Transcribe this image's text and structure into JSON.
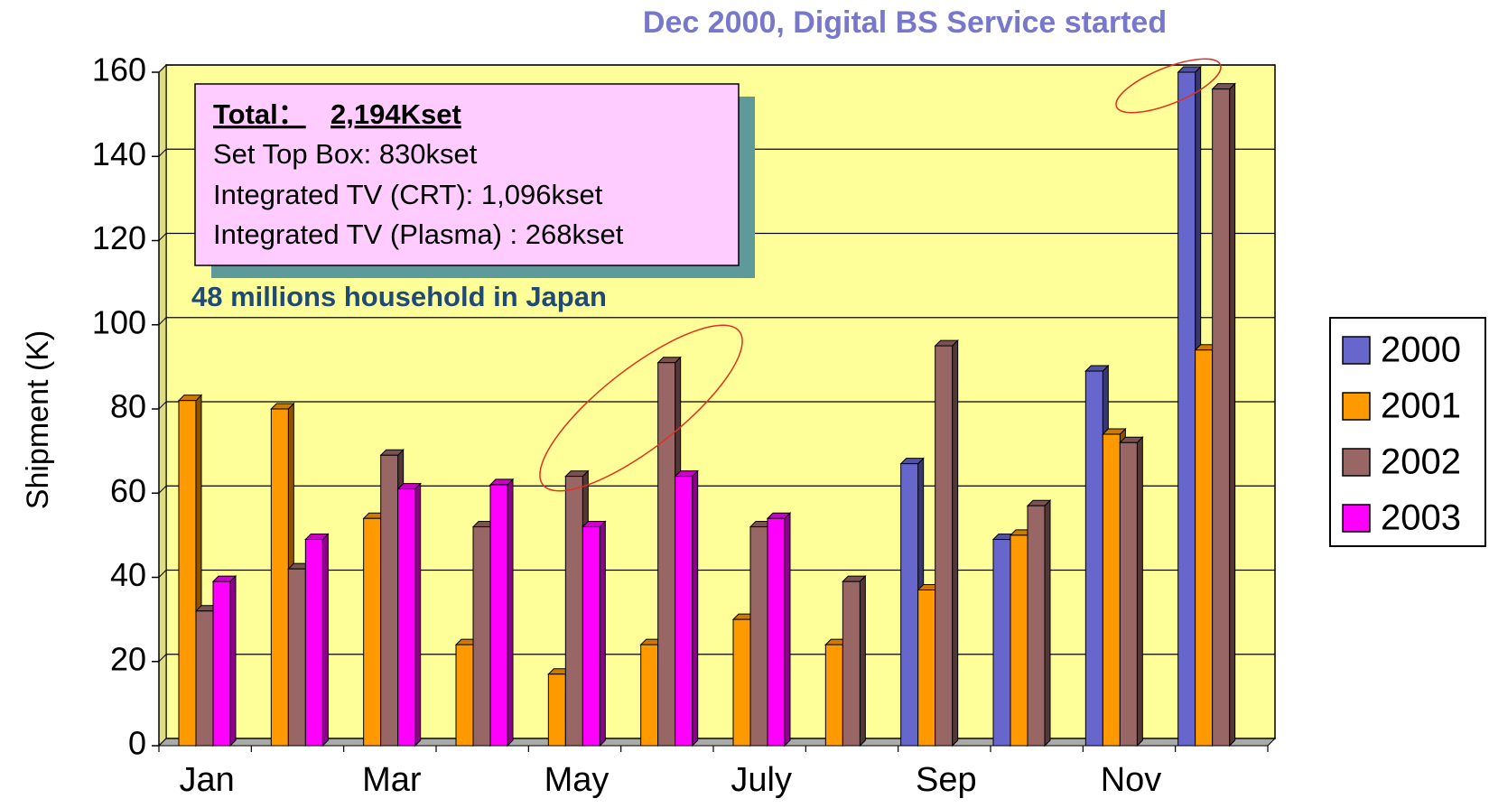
{
  "chart_data": {
    "type": "bar",
    "title": "Dec 2000, Digital BS Service started",
    "annotation": "48 millions household in Japan",
    "info_box": {
      "total_label": "Total：",
      "total_value": "2,194Kset",
      "lines": [
        "Set Top Box:  830kset",
        "Integrated TV (CRT): 1,096kset",
        "Integrated TV (Plasma) : 268kset"
      ]
    },
    "y_label": "Shipment (K)",
    "categories": [
      "Jan",
      null,
      "Mar",
      null,
      "May",
      null,
      "July",
      null,
      "Sep",
      null,
      "Nov",
      null
    ],
    "series": [
      {
        "name": "2000",
        "color": "#6666cc",
        "values": [
          null,
          null,
          null,
          null,
          null,
          null,
          null,
          null,
          67,
          49,
          89,
          160
        ]
      },
      {
        "name": "2001",
        "color": "#ff9900",
        "values": [
          82,
          80,
          54,
          24,
          17,
          24,
          30,
          24,
          37,
          50,
          74,
          94
        ]
      },
      {
        "name": "2002",
        "color": "#996666",
        "values": [
          32,
          42,
          69,
          52,
          64,
          91,
          52,
          39,
          95,
          57,
          72,
          156
        ]
      },
      {
        "name": "2003",
        "color": "#ff00ff",
        "values": [
          39,
          49,
          61,
          62,
          52,
          64,
          54,
          null,
          null,
          null,
          null,
          null
        ]
      }
    ],
    "ylim": [
      0,
      160
    ],
    "yticks": [
      0,
      20,
      40,
      60,
      80,
      100,
      120,
      140,
      160
    ],
    "grid": true,
    "legend": "right"
  }
}
